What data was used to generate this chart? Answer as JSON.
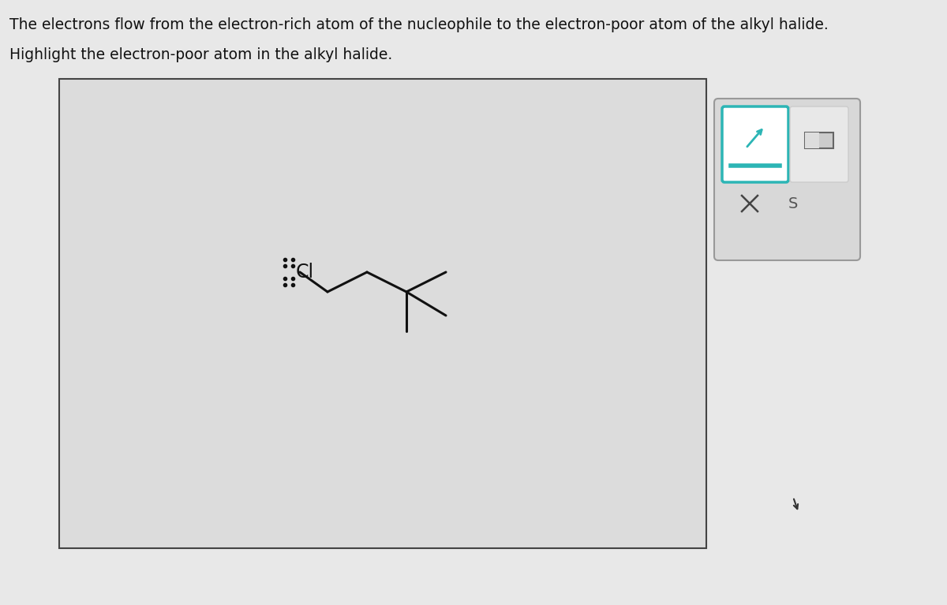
{
  "title_line1": "The electrons flow from the electron-rich atom of the nucleophile to the electron-poor atom of the alkyl halide.",
  "title_line2": "Highlight the electron-poor atom in the alkyl halide.",
  "title_fontsize": 13.5,
  "background_color": "#e8e8e8",
  "box_facecolor": "#dcdcdc",
  "box_edgecolor": "#444444",
  "molecule_color": "#111111",
  "bond_lw": 2.2,
  "cl_fontsize": 17,
  "dot_markersize": 3.0,
  "toolbar_box_facecolor": "#d8d8d8",
  "toolbar_box_edgecolor": "#aaaaaa",
  "btn1_edgecolor": "#2cb5b5",
  "btn1_facecolor": "#ffffff",
  "btn2_facecolor": "#e8e8e8",
  "btn2_edgecolor": "#cccccc",
  "cross_color": "#444444"
}
